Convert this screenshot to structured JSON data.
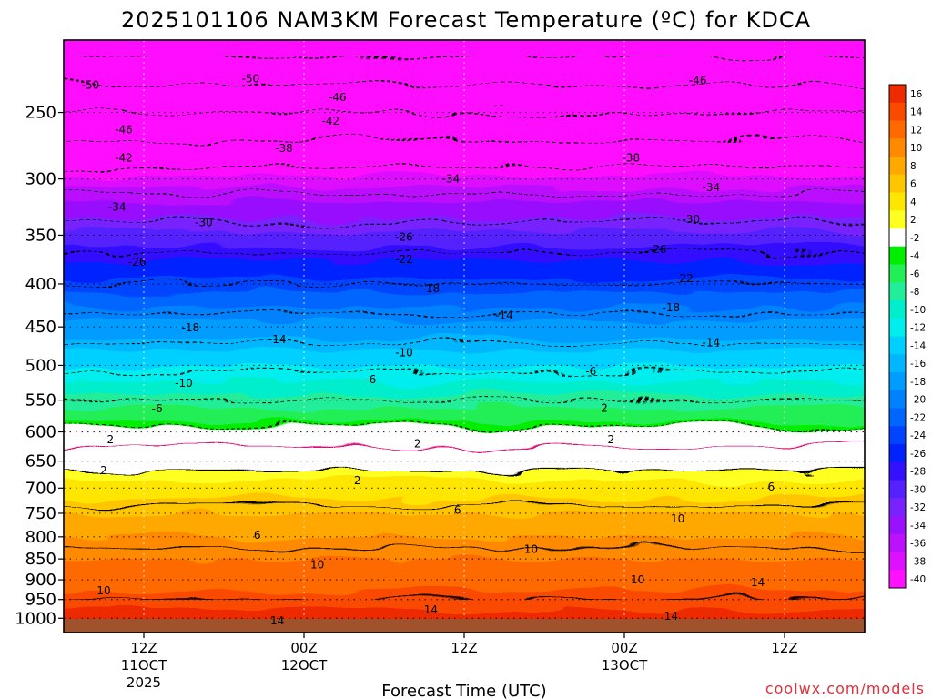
{
  "chart_data": {
    "type": "heatmap",
    "title": "2025101106 NAM3KM Forecast Temperature (ºC) for KDCA",
    "xlabel": "Forecast Time (UTC)",
    "ylabel": "",
    "y_scale": "log-pressure",
    "y_axis_reversed": true,
    "y_ticks": [
      "250",
      "300",
      "350",
      "400",
      "450",
      "500",
      "550",
      "600",
      "650",
      "700",
      "750",
      "800",
      "850",
      "900",
      "950",
      "1000"
    ],
    "x_ticks": [
      {
        "hours": 6,
        "label": "12Z",
        "sub": "11OCT",
        "sub2": "2025"
      },
      {
        "hours": 18,
        "label": "00Z",
        "sub": "12OCT",
        "sub2": ""
      },
      {
        "hours": 30,
        "label": "12Z",
        "sub": "",
        "sub2": ""
      },
      {
        "hours": 42,
        "label": "00Z",
        "sub": "13OCT",
        "sub2": ""
      },
      {
        "hours": 54,
        "label": "12Z",
        "sub": "",
        "sub2": ""
      }
    ],
    "x_range_hours": [
      0,
      60
    ],
    "y_range_hPa": [
      1040,
      205
    ],
    "grid": true,
    "colorbar": {
      "levels": [
        "16",
        "14",
        "12",
        "10",
        "8",
        "6",
        "4",
        "2",
        "-2",
        "-4",
        "-6",
        "-8",
        "-10",
        "-12",
        "-14",
        "-16",
        "-18",
        "-20",
        "-22",
        "-24",
        "-26",
        "-28",
        "-30",
        "-32",
        "-34",
        "-36",
        "-38",
        "-40"
      ],
      "colors": [
        "#ee2a00",
        "#fa4a00",
        "#ff6a00",
        "#ff8a00",
        "#ffa800",
        "#ffc600",
        "#ffe600",
        "#ffff20",
        "#ffffff",
        "#00ee00",
        "#22ee55",
        "#22ee99",
        "#00eecc",
        "#00eeee",
        "#00d0ff",
        "#00b6ff",
        "#009cff",
        "#0082ff",
        "#0066ff",
        "#0044ff",
        "#0022ff",
        "#3311ff",
        "#5522ff",
        "#7722ff",
        "#9911ff",
        "#bb11ff",
        "#dd11ff",
        "#ff11ff"
      ]
    },
    "ground_color": "#a0522d",
    "freezing_line_color": "#e0107a",
    "isotherm_labels": [
      {
        "t": 2.0,
        "p": 232,
        "text": "-50"
      },
      {
        "t": 14.0,
        "p": 228,
        "text": "-50"
      },
      {
        "t": 20.5,
        "p": 240,
        "text": "-46"
      },
      {
        "t": 47.5,
        "p": 229,
        "text": "-46"
      },
      {
        "t": 4.5,
        "p": 262,
        "text": "-46"
      },
      {
        "t": 4.5,
        "p": 283,
        "text": "-42"
      },
      {
        "t": 20.0,
        "p": 256,
        "text": "-42"
      },
      {
        "t": 16.5,
        "p": 276,
        "text": "-38"
      },
      {
        "t": 42.5,
        "p": 283,
        "text": "-38"
      },
      {
        "t": 29.0,
        "p": 300,
        "text": "-34"
      },
      {
        "t": 48.5,
        "p": 307,
        "text": "-34"
      },
      {
        "t": 4.0,
        "p": 324,
        "text": "-34"
      },
      {
        "t": 10.5,
        "p": 338,
        "text": "-30"
      },
      {
        "t": 47.0,
        "p": 335,
        "text": "-30"
      },
      {
        "t": 25.5,
        "p": 352,
        "text": "-26"
      },
      {
        "t": 44.5,
        "p": 364,
        "text": "-26"
      },
      {
        "t": 5.5,
        "p": 377,
        "text": "-26"
      },
      {
        "t": 25.5,
        "p": 374,
        "text": "-22"
      },
      {
        "t": 46.5,
        "p": 394,
        "text": "-22"
      },
      {
        "t": 27.5,
        "p": 405,
        "text": "-18"
      },
      {
        "t": 45.5,
        "p": 427,
        "text": "-18"
      },
      {
        "t": 9.5,
        "p": 451,
        "text": "-18"
      },
      {
        "t": 33.0,
        "p": 436,
        "text": "-14"
      },
      {
        "t": 48.5,
        "p": 470,
        "text": "-14"
      },
      {
        "t": 16.0,
        "p": 466,
        "text": "-14"
      },
      {
        "t": 25.5,
        "p": 483,
        "text": "-10"
      },
      {
        "t": 9.0,
        "p": 525,
        "text": "-10"
      },
      {
        "t": 23.0,
        "p": 520,
        "text": "-6"
      },
      {
        "t": 39.5,
        "p": 508,
        "text": "-6"
      },
      {
        "t": 7.0,
        "p": 563,
        "text": "-6"
      },
      {
        "t": 40.5,
        "p": 562,
        "text": "2"
      },
      {
        "t": 26.5,
        "p": 620,
        "text": "2"
      },
      {
        "t": 41.0,
        "p": 613,
        "text": "2"
      },
      {
        "t": 3.5,
        "p": 613,
        "text": "2"
      },
      {
        "t": 3.0,
        "p": 667,
        "text": "2"
      },
      {
        "t": 22.0,
        "p": 686,
        "text": "2"
      },
      {
        "t": 29.5,
        "p": 744,
        "text": "6"
      },
      {
        "t": 53.0,
        "p": 698,
        "text": "6"
      },
      {
        "t": 14.5,
        "p": 796,
        "text": "6"
      },
      {
        "t": 46.0,
        "p": 761,
        "text": "10"
      },
      {
        "t": 35.0,
        "p": 828,
        "text": "10"
      },
      {
        "t": 19.0,
        "p": 864,
        "text": "10"
      },
      {
        "t": 43.0,
        "p": 900,
        "text": "10"
      },
      {
        "t": 3.0,
        "p": 927,
        "text": "10"
      },
      {
        "t": 52.0,
        "p": 907,
        "text": "14"
      },
      {
        "t": 27.5,
        "p": 977,
        "text": "14"
      },
      {
        "t": 45.5,
        "p": 994,
        "text": "14"
      },
      {
        "t": 16.0,
        "p": 1007,
        "text": "14"
      }
    ]
  },
  "credit": "coolwx.com/models"
}
